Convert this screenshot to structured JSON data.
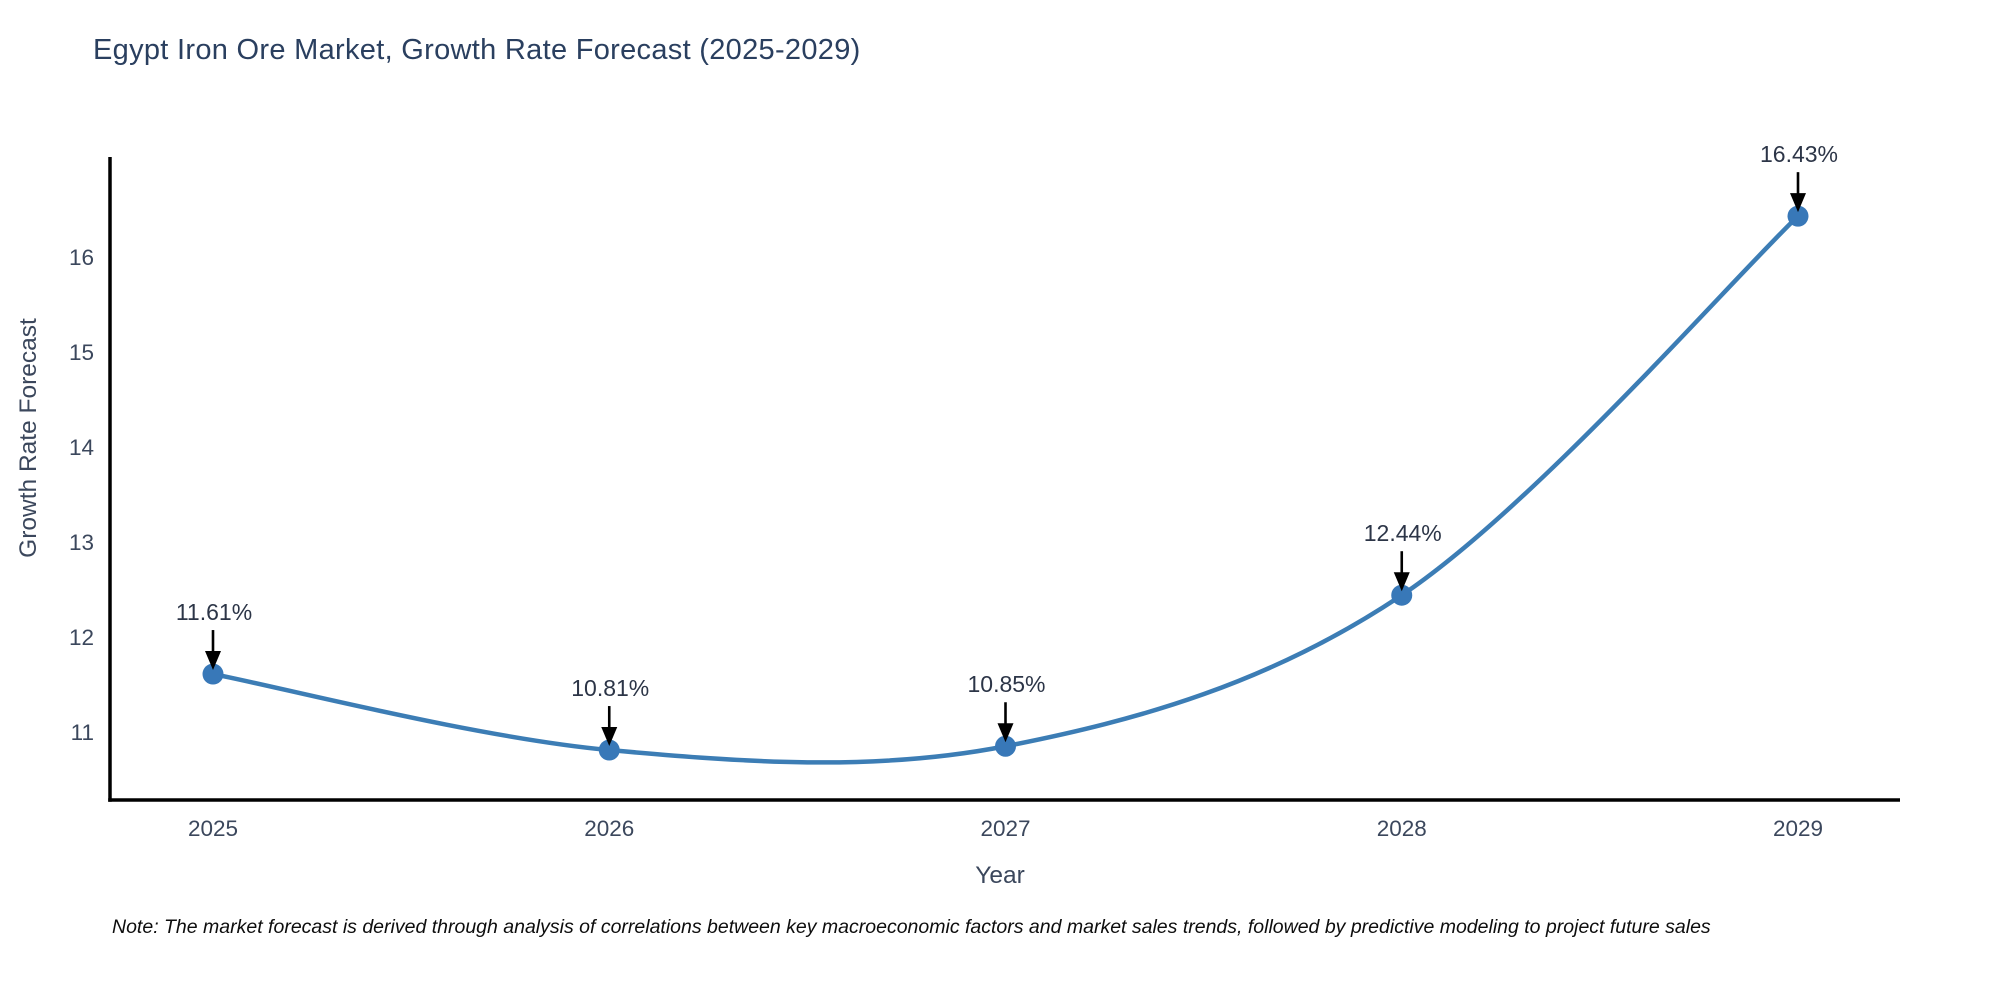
{
  "chart": {
    "title": "Egypt Iron Ore Market, Growth Rate Forecast (2025-2029)",
    "note": "Note: The market forecast is derived through analysis of correlations between key macroeconomic factors and market sales trends, followed by predictive modeling to project future sales"
  },
  "chart_data": {
    "type": "line",
    "title": "Egypt Iron Ore Market, Growth Rate Forecast (2025-2029)",
    "x": [
      2025,
      2026,
      2027,
      2028,
      2029
    ],
    "values": [
      11.61,
      10.81,
      10.85,
      12.44,
      16.43
    ],
    "point_labels": [
      "11.61%",
      "10.81%",
      "10.85%",
      "12.44%",
      "16.43%"
    ],
    "xlabel": "Year",
    "ylabel": "Growth Rate Forecast",
    "yticks": [
      11,
      12,
      13,
      14,
      15,
      16
    ],
    "ylim": [
      10.2842,
      17.0526
    ],
    "grid": false,
    "legend": false,
    "smooth": true,
    "style": {
      "line_color": "#3c7db5",
      "marker_color": "#3878b8",
      "axis_line_color": "#000000",
      "tick_color": "#3b475c",
      "axis_label_color": "#3b475c",
      "title_color": "#2a3f5f",
      "annotation_text_color": "#2c3547",
      "annotation_arrow_color": "#000000",
      "background": "#ffffff"
    }
  }
}
